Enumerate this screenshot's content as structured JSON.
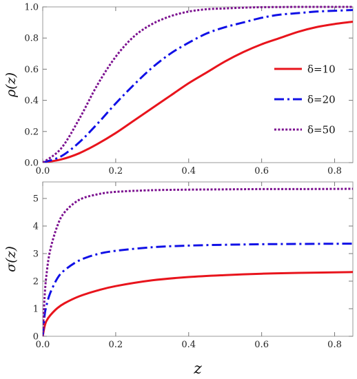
{
  "chart_data": [
    {
      "type": "line",
      "ylabel": "ρ(z)",
      "xlabel": "",
      "xlim": [
        0,
        0.85
      ],
      "ylim": [
        0,
        1.0
      ],
      "xticks": [
        "0.0",
        "0.2",
        "0.4",
        "0.6",
        "0.8"
      ],
      "yticks": [
        "0.0",
        "0.2",
        "0.4",
        "0.6",
        "0.8",
        "1.0"
      ],
      "legend_placement": "right",
      "series": [
        {
          "name": "δ=10",
          "color": "#e8141c",
          "style": "solid",
          "x": [
            0,
            0.05,
            0.1,
            0.15,
            0.2,
            0.25,
            0.3,
            0.35,
            0.4,
            0.45,
            0.5,
            0.55,
            0.6,
            0.65,
            0.7,
            0.75,
            0.8,
            0.85
          ],
          "y": [
            0,
            0.02,
            0.06,
            0.12,
            0.19,
            0.27,
            0.35,
            0.43,
            0.51,
            0.58,
            0.65,
            0.71,
            0.76,
            0.8,
            0.84,
            0.87,
            0.89,
            0.905
          ]
        },
        {
          "name": "δ=20",
          "color": "#1010e6",
          "style": "dashdot",
          "x": [
            0,
            0.05,
            0.1,
            0.15,
            0.2,
            0.25,
            0.3,
            0.35,
            0.4,
            0.45,
            0.5,
            0.55,
            0.6,
            0.65,
            0.7,
            0.75,
            0.8,
            0.85
          ],
          "y": [
            0,
            0.04,
            0.13,
            0.25,
            0.38,
            0.5,
            0.61,
            0.7,
            0.77,
            0.83,
            0.87,
            0.9,
            0.93,
            0.95,
            0.96,
            0.97,
            0.975,
            0.98
          ]
        },
        {
          "name": "δ=50",
          "color": "#7b0f8f",
          "style": "dotted",
          "x": [
            0,
            0.05,
            0.1,
            0.15,
            0.2,
            0.25,
            0.3,
            0.35,
            0.4,
            0.45,
            0.5,
            0.55,
            0.6,
            0.65,
            0.7,
            0.75,
            0.8,
            0.85
          ],
          "y": [
            0,
            0.09,
            0.28,
            0.5,
            0.68,
            0.81,
            0.89,
            0.94,
            0.97,
            0.985,
            0.99,
            0.995,
            0.998,
            0.999,
            1.0,
            1.0,
            1.0,
            1.0
          ]
        }
      ]
    },
    {
      "type": "line",
      "ylabel": "σ(z)",
      "xlabel": "z",
      "xlim": [
        0,
        0.85
      ],
      "ylim": [
        0,
        5.6
      ],
      "xticks": [
        "0.0",
        "0.2",
        "0.4",
        "0.6",
        "0.8"
      ],
      "yticks": [
        "0",
        "1",
        "2",
        "3",
        "4",
        "5"
      ],
      "series": [
        {
          "name": "δ=10",
          "color": "#e8141c",
          "style": "solid",
          "x": [
            0,
            0.005,
            0.01,
            0.02,
            0.04,
            0.06,
            0.1,
            0.15,
            0.2,
            0.3,
            0.4,
            0.5,
            0.6,
            0.7,
            0.85
          ],
          "y": [
            0,
            0.35,
            0.55,
            0.75,
            1.02,
            1.2,
            1.45,
            1.66,
            1.82,
            2.03,
            2.15,
            2.22,
            2.27,
            2.3,
            2.33
          ]
        },
        {
          "name": "δ=20",
          "color": "#1010e6",
          "style": "dashdot",
          "x": [
            0,
            0.005,
            0.01,
            0.02,
            0.04,
            0.06,
            0.1,
            0.15,
            0.2,
            0.3,
            0.4,
            0.5,
            0.6,
            0.7,
            0.85
          ],
          "y": [
            0,
            0.75,
            1.1,
            1.55,
            2.1,
            2.4,
            2.75,
            2.98,
            3.1,
            3.23,
            3.29,
            3.32,
            3.34,
            3.35,
            3.36
          ]
        },
        {
          "name": "δ=50",
          "color": "#7b0f8f",
          "style": "dotted",
          "x": [
            0,
            0.005,
            0.01,
            0.02,
            0.04,
            0.06,
            0.1,
            0.15,
            0.2,
            0.3,
            0.4,
            0.5,
            0.6,
            0.7,
            0.85
          ],
          "y": [
            0,
            1.4,
            2.2,
            3.1,
            4.0,
            4.5,
            4.95,
            5.15,
            5.24,
            5.3,
            5.32,
            5.33,
            5.34,
            5.34,
            5.35
          ]
        }
      ]
    }
  ]
}
